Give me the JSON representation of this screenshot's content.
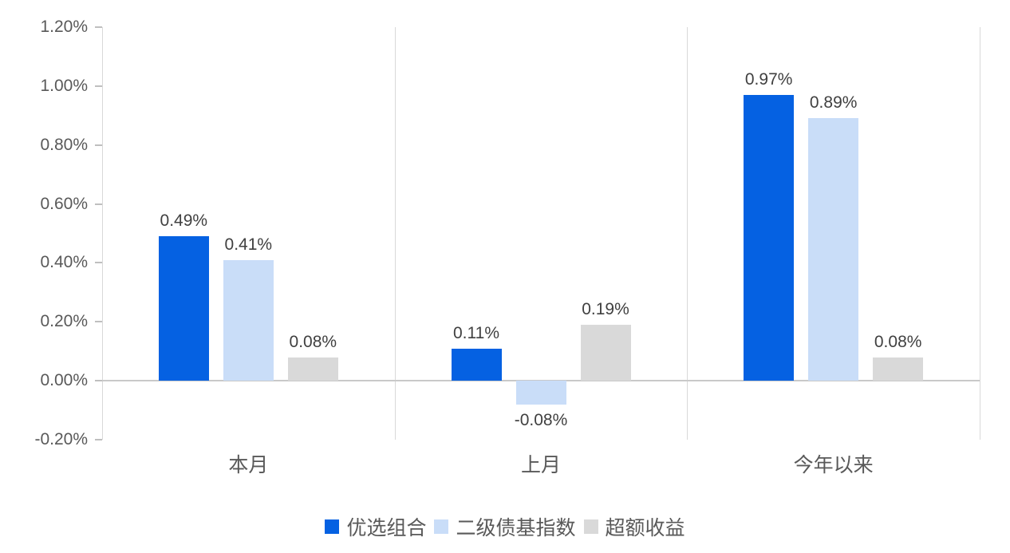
{
  "chart_data": {
    "type": "bar",
    "title": "",
    "xlabel": "",
    "ylabel": "",
    "categories": [
      "本月",
      "上月",
      "今年以来"
    ],
    "series": [
      {
        "name": "优选组合",
        "color": "#0561E2",
        "values": [
          0.49,
          0.11,
          0.97
        ],
        "labels": [
          "0.49%",
          "0.11%",
          "0.97%"
        ]
      },
      {
        "name": "二级债基指数",
        "color": "#C9DDF8",
        "values": [
          0.41,
          -0.08,
          0.89
        ],
        "labels": [
          "0.41%",
          "-0.08%",
          "0.89%"
        ]
      },
      {
        "name": "超额收益",
        "color": "#D9D9D9",
        "values": [
          0.08,
          0.19,
          0.08
        ],
        "labels": [
          "0.08%",
          "0.19%",
          "0.08%"
        ]
      }
    ],
    "ylim": [
      -0.2,
      1.2
    ],
    "ytick_step": 0.2,
    "yticks": [
      "1.20%",
      "1.00%",
      "0.80%",
      "0.60%",
      "0.40%",
      "0.20%",
      "0.00%",
      "-0.20%"
    ],
    "grid": false,
    "legend_position": "bottom"
  },
  "style_colors": {
    "axis_line": "#D9D9D9",
    "zero_line": "#C9C9C9",
    "tick_mark": "#BFBFBF",
    "tick_text": "#595959",
    "value_label_text": "#404040"
  }
}
